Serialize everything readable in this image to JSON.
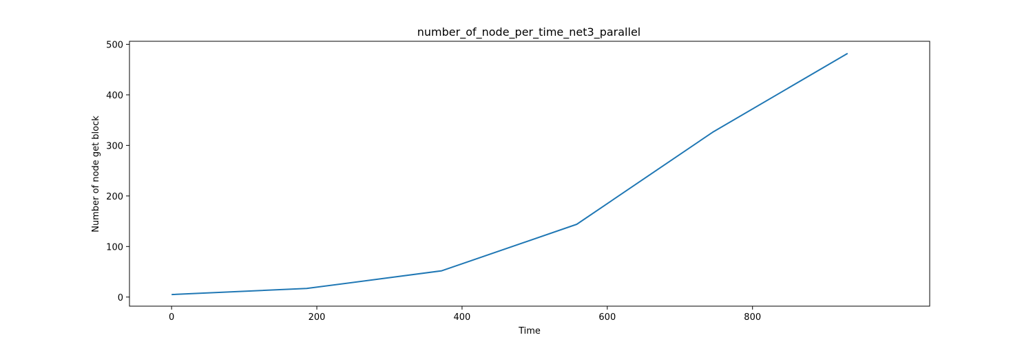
{
  "chart_data": {
    "type": "line",
    "title": "number_of_node_per_time_net3_parallel",
    "xlabel": "Time",
    "ylabel": "Number of node get block",
    "xlim": [
      -58,
      1044
    ],
    "ylim": [
      -18,
      506
    ],
    "xticks": [
      0,
      200,
      400,
      600,
      800
    ],
    "yticks": [
      0,
      100,
      200,
      300,
      400,
      500
    ],
    "grid": false,
    "line_color": "#1f77b4",
    "series": [
      {
        "x": [
          0,
          186,
          372,
          558,
          745,
          931
        ],
        "y": [
          5,
          17,
          52,
          144,
          326,
          482
        ]
      }
    ]
  }
}
